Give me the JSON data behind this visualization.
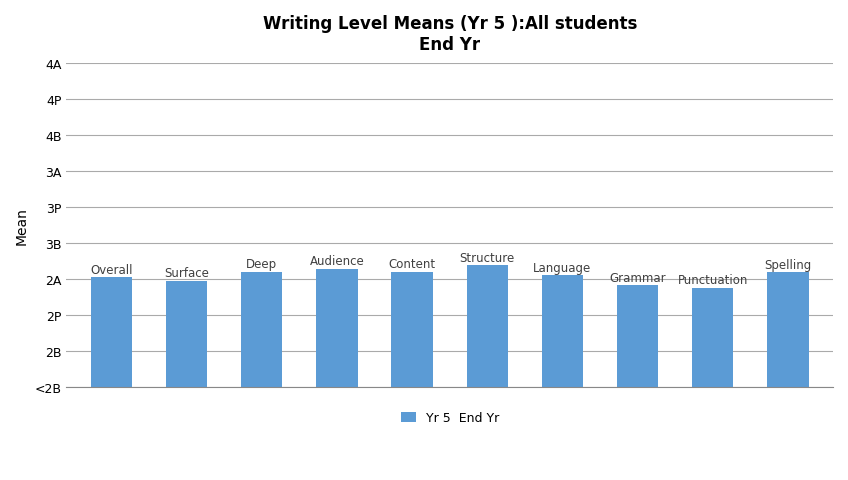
{
  "title_line1": "Writing Level Means (Yr 5 ):All students",
  "title_line2": "End Yr",
  "ylabel": "Mean",
  "legend_label": "Yr 5  End Yr",
  "categories": [
    "Overall",
    "Surface",
    "Deep",
    "Audience",
    "Content",
    "Structure",
    "Language",
    "Grammar",
    "Punctuation",
    "Spelling"
  ],
  "ytick_labels": [
    "<2B",
    "2B",
    "2P",
    "2A",
    "3B",
    "3P",
    "3A",
    "4B",
    "4P",
    "4A"
  ],
  "ytick_values": [
    0,
    1,
    2,
    3,
    4,
    5,
    6,
    7,
    8,
    9
  ],
  "bar_color": "#5B9BD5",
  "background_color": "#FFFFFF",
  "values": [
    3.05,
    2.95,
    3.2,
    3.28,
    3.2,
    3.38,
    3.1,
    2.82,
    2.75,
    3.18
  ],
  "ylim": [
    0,
    9
  ],
  "figsize": [
    8.48,
    4.81
  ],
  "dpi": 100,
  "title_fontsize": 12,
  "bar_label_fontsize": 8.5,
  "axis_label_fontsize": 10,
  "tick_fontsize": 9,
  "legend_fontsize": 9,
  "bar_label_color": "#404040",
  "bar_width": 0.55,
  "x_positions": [
    0,
    1,
    2,
    3,
    4,
    5,
    6,
    7,
    8,
    9
  ]
}
